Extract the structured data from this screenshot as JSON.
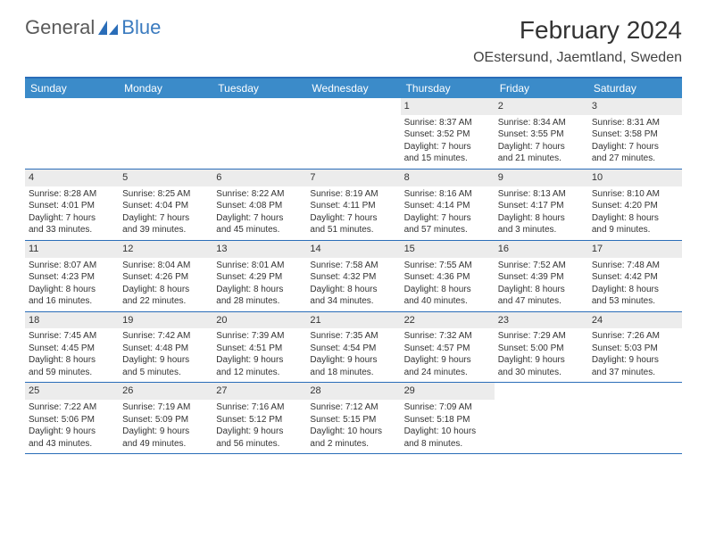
{
  "logo": {
    "text1": "General",
    "text2": "Blue"
  },
  "title": "February 2024",
  "location": "OEstersund, Jaemtland, Sweden",
  "colors": {
    "header_bg": "#3b8bc9",
    "header_border": "#2a6db8",
    "daynum_bg": "#ececec",
    "logo_gray": "#5a5a5a",
    "logo_blue": "#3b7bbf"
  },
  "weekdays": [
    "Sunday",
    "Monday",
    "Tuesday",
    "Wednesday",
    "Thursday",
    "Friday",
    "Saturday"
  ],
  "weeks": [
    [
      {
        "n": "",
        "sr": "",
        "ss": "",
        "dl1": "",
        "dl2": ""
      },
      {
        "n": "",
        "sr": "",
        "ss": "",
        "dl1": "",
        "dl2": ""
      },
      {
        "n": "",
        "sr": "",
        "ss": "",
        "dl1": "",
        "dl2": ""
      },
      {
        "n": "",
        "sr": "",
        "ss": "",
        "dl1": "",
        "dl2": ""
      },
      {
        "n": "1",
        "sr": "Sunrise: 8:37 AM",
        "ss": "Sunset: 3:52 PM",
        "dl1": "Daylight: 7 hours",
        "dl2": "and 15 minutes."
      },
      {
        "n": "2",
        "sr": "Sunrise: 8:34 AM",
        "ss": "Sunset: 3:55 PM",
        "dl1": "Daylight: 7 hours",
        "dl2": "and 21 minutes."
      },
      {
        "n": "3",
        "sr": "Sunrise: 8:31 AM",
        "ss": "Sunset: 3:58 PM",
        "dl1": "Daylight: 7 hours",
        "dl2": "and 27 minutes."
      }
    ],
    [
      {
        "n": "4",
        "sr": "Sunrise: 8:28 AM",
        "ss": "Sunset: 4:01 PM",
        "dl1": "Daylight: 7 hours",
        "dl2": "and 33 minutes."
      },
      {
        "n": "5",
        "sr": "Sunrise: 8:25 AM",
        "ss": "Sunset: 4:04 PM",
        "dl1": "Daylight: 7 hours",
        "dl2": "and 39 minutes."
      },
      {
        "n": "6",
        "sr": "Sunrise: 8:22 AM",
        "ss": "Sunset: 4:08 PM",
        "dl1": "Daylight: 7 hours",
        "dl2": "and 45 minutes."
      },
      {
        "n": "7",
        "sr": "Sunrise: 8:19 AM",
        "ss": "Sunset: 4:11 PM",
        "dl1": "Daylight: 7 hours",
        "dl2": "and 51 minutes."
      },
      {
        "n": "8",
        "sr": "Sunrise: 8:16 AM",
        "ss": "Sunset: 4:14 PM",
        "dl1": "Daylight: 7 hours",
        "dl2": "and 57 minutes."
      },
      {
        "n": "9",
        "sr": "Sunrise: 8:13 AM",
        "ss": "Sunset: 4:17 PM",
        "dl1": "Daylight: 8 hours",
        "dl2": "and 3 minutes."
      },
      {
        "n": "10",
        "sr": "Sunrise: 8:10 AM",
        "ss": "Sunset: 4:20 PM",
        "dl1": "Daylight: 8 hours",
        "dl2": "and 9 minutes."
      }
    ],
    [
      {
        "n": "11",
        "sr": "Sunrise: 8:07 AM",
        "ss": "Sunset: 4:23 PM",
        "dl1": "Daylight: 8 hours",
        "dl2": "and 16 minutes."
      },
      {
        "n": "12",
        "sr": "Sunrise: 8:04 AM",
        "ss": "Sunset: 4:26 PM",
        "dl1": "Daylight: 8 hours",
        "dl2": "and 22 minutes."
      },
      {
        "n": "13",
        "sr": "Sunrise: 8:01 AM",
        "ss": "Sunset: 4:29 PM",
        "dl1": "Daylight: 8 hours",
        "dl2": "and 28 minutes."
      },
      {
        "n": "14",
        "sr": "Sunrise: 7:58 AM",
        "ss": "Sunset: 4:32 PM",
        "dl1": "Daylight: 8 hours",
        "dl2": "and 34 minutes."
      },
      {
        "n": "15",
        "sr": "Sunrise: 7:55 AM",
        "ss": "Sunset: 4:36 PM",
        "dl1": "Daylight: 8 hours",
        "dl2": "and 40 minutes."
      },
      {
        "n": "16",
        "sr": "Sunrise: 7:52 AM",
        "ss": "Sunset: 4:39 PM",
        "dl1": "Daylight: 8 hours",
        "dl2": "and 47 minutes."
      },
      {
        "n": "17",
        "sr": "Sunrise: 7:48 AM",
        "ss": "Sunset: 4:42 PM",
        "dl1": "Daylight: 8 hours",
        "dl2": "and 53 minutes."
      }
    ],
    [
      {
        "n": "18",
        "sr": "Sunrise: 7:45 AM",
        "ss": "Sunset: 4:45 PM",
        "dl1": "Daylight: 8 hours",
        "dl2": "and 59 minutes."
      },
      {
        "n": "19",
        "sr": "Sunrise: 7:42 AM",
        "ss": "Sunset: 4:48 PM",
        "dl1": "Daylight: 9 hours",
        "dl2": "and 5 minutes."
      },
      {
        "n": "20",
        "sr": "Sunrise: 7:39 AM",
        "ss": "Sunset: 4:51 PM",
        "dl1": "Daylight: 9 hours",
        "dl2": "and 12 minutes."
      },
      {
        "n": "21",
        "sr": "Sunrise: 7:35 AM",
        "ss": "Sunset: 4:54 PM",
        "dl1": "Daylight: 9 hours",
        "dl2": "and 18 minutes."
      },
      {
        "n": "22",
        "sr": "Sunrise: 7:32 AM",
        "ss": "Sunset: 4:57 PM",
        "dl1": "Daylight: 9 hours",
        "dl2": "and 24 minutes."
      },
      {
        "n": "23",
        "sr": "Sunrise: 7:29 AM",
        "ss": "Sunset: 5:00 PM",
        "dl1": "Daylight: 9 hours",
        "dl2": "and 30 minutes."
      },
      {
        "n": "24",
        "sr": "Sunrise: 7:26 AM",
        "ss": "Sunset: 5:03 PM",
        "dl1": "Daylight: 9 hours",
        "dl2": "and 37 minutes."
      }
    ],
    [
      {
        "n": "25",
        "sr": "Sunrise: 7:22 AM",
        "ss": "Sunset: 5:06 PM",
        "dl1": "Daylight: 9 hours",
        "dl2": "and 43 minutes."
      },
      {
        "n": "26",
        "sr": "Sunrise: 7:19 AM",
        "ss": "Sunset: 5:09 PM",
        "dl1": "Daylight: 9 hours",
        "dl2": "and 49 minutes."
      },
      {
        "n": "27",
        "sr": "Sunrise: 7:16 AM",
        "ss": "Sunset: 5:12 PM",
        "dl1": "Daylight: 9 hours",
        "dl2": "and 56 minutes."
      },
      {
        "n": "28",
        "sr": "Sunrise: 7:12 AM",
        "ss": "Sunset: 5:15 PM",
        "dl1": "Daylight: 10 hours",
        "dl2": "and 2 minutes."
      },
      {
        "n": "29",
        "sr": "Sunrise: 7:09 AM",
        "ss": "Sunset: 5:18 PM",
        "dl1": "Daylight: 10 hours",
        "dl2": "and 8 minutes."
      },
      {
        "n": "",
        "sr": "",
        "ss": "",
        "dl1": "",
        "dl2": ""
      },
      {
        "n": "",
        "sr": "",
        "ss": "",
        "dl1": "",
        "dl2": ""
      }
    ]
  ]
}
